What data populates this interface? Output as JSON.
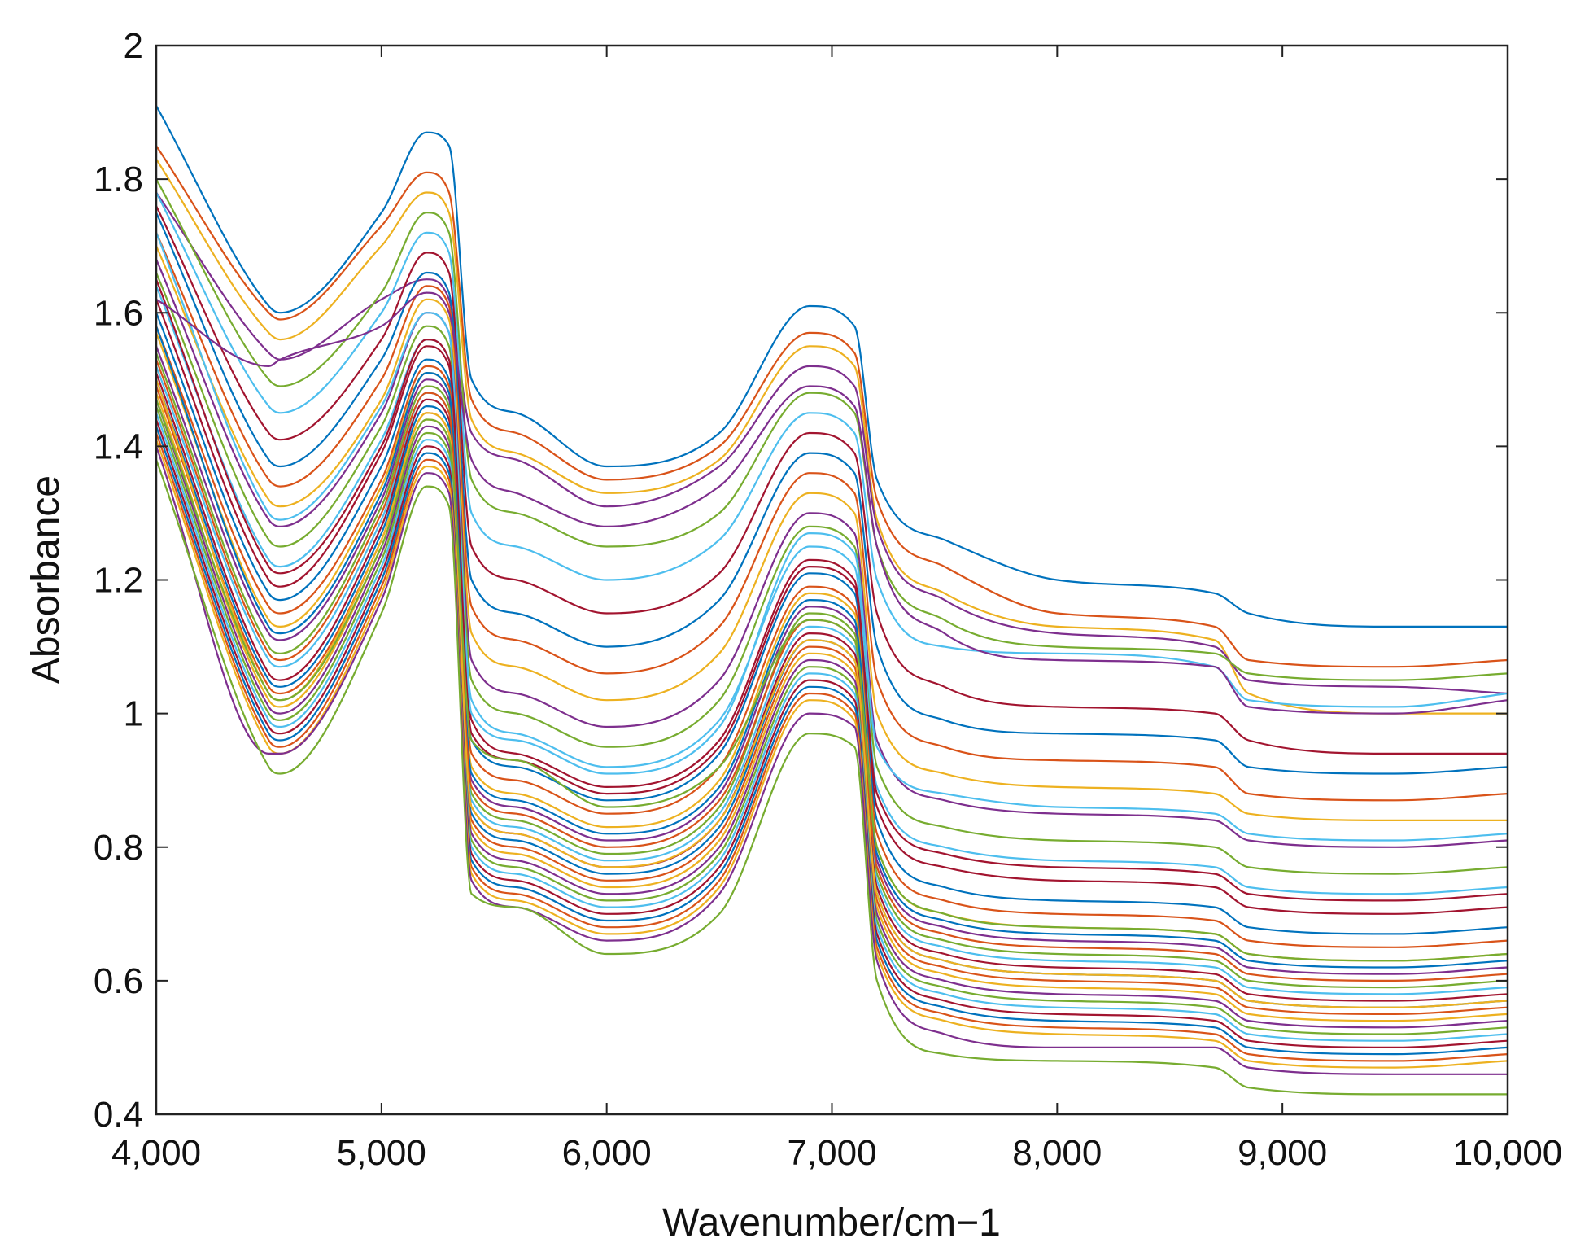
{
  "chart_data": {
    "type": "line",
    "title": "",
    "xlabel": "Wavenumber/cm−1",
    "ylabel": "Absorbance",
    "xlim": [
      4000,
      10000
    ],
    "ylim": [
      0.4,
      2
    ],
    "x_ticks": [
      4000,
      5000,
      6000,
      7000,
      8000,
      9000,
      10000
    ],
    "x_tick_labels": [
      "4,000",
      "5,000",
      "6,000",
      "7,000",
      "8,000",
      "9,000",
      "10,000"
    ],
    "y_ticks": [
      0.4,
      0.6,
      0.8,
      1,
      1.2,
      1.4,
      1.6,
      1.8,
      2
    ],
    "y_tick_labels": [
      "0.4",
      "0.6",
      "0.8",
      "1",
      "1.2",
      "1.4",
      "1.6",
      "1.8",
      "2"
    ],
    "grid": false,
    "legend": "none",
    "colors": [
      "#0072BD",
      "#D95319",
      "#EDB120",
      "#7E2F8E",
      "#77AC30",
      "#4DBEEE",
      "#A2142F"
    ],
    "x": [
      4000,
      4500,
      4550,
      5000,
      5200,
      5300,
      5400,
      5600,
      6000,
      6500,
      6900,
      7100,
      7200,
      7500,
      8000,
      8700,
      8850,
      9500,
      10000
    ],
    "series": [
      {
        "values": [
          1.91,
          1.61,
          1.6,
          1.75,
          1.87,
          1.85,
          1.5,
          1.45,
          1.37,
          1.42,
          1.61,
          1.58,
          1.35,
          1.26,
          1.2,
          1.18,
          1.15,
          1.13,
          1.13
        ]
      },
      {
        "values": [
          1.85,
          1.6,
          1.59,
          1.73,
          1.81,
          1.78,
          1.47,
          1.42,
          1.35,
          1.4,
          1.57,
          1.54,
          1.32,
          1.22,
          1.15,
          1.13,
          1.08,
          1.07,
          1.08
        ]
      },
      {
        "values": [
          1.83,
          1.57,
          1.56,
          1.7,
          1.78,
          1.75,
          1.44,
          1.39,
          1.33,
          1.38,
          1.55,
          1.52,
          1.29,
          1.18,
          1.13,
          1.11,
          1.03,
          1.0,
          1.0
        ]
      },
      {
        "values": [
          1.78,
          1.54,
          1.53,
          1.62,
          1.65,
          1.62,
          1.42,
          1.38,
          1.31,
          1.37,
          1.52,
          1.49,
          1.28,
          1.17,
          1.12,
          1.1,
          1.05,
          1.04,
          1.03
        ]
      },
      {
        "values": [
          1.8,
          1.5,
          1.49,
          1.63,
          1.75,
          1.72,
          1.35,
          1.3,
          1.25,
          1.3,
          1.48,
          1.45,
          1.25,
          1.14,
          1.1,
          1.09,
          1.06,
          1.05,
          1.06
        ]
      },
      {
        "values": [
          1.78,
          1.46,
          1.45,
          1.6,
          1.72,
          1.69,
          1.3,
          1.25,
          1.2,
          1.26,
          1.45,
          1.42,
          1.2,
          1.1,
          1.09,
          1.07,
          1.02,
          1.01,
          1.03
        ]
      },
      {
        "values": [
          1.76,
          1.42,
          1.41,
          1.56,
          1.69,
          1.66,
          1.25,
          1.2,
          1.15,
          1.21,
          1.42,
          1.39,
          1.15,
          1.04,
          1.01,
          1.0,
          0.96,
          0.94,
          0.94
        ]
      },
      {
        "values": [
          1.75,
          1.38,
          1.37,
          1.53,
          1.66,
          1.63,
          1.2,
          1.15,
          1.1,
          1.17,
          1.39,
          1.36,
          1.1,
          0.99,
          0.97,
          0.96,
          0.92,
          0.91,
          0.92
        ]
      },
      {
        "values": [
          1.72,
          1.35,
          1.34,
          1.5,
          1.64,
          1.61,
          1.16,
          1.11,
          1.06,
          1.13,
          1.36,
          1.33,
          1.05,
          0.95,
          0.93,
          0.92,
          0.88,
          0.87,
          0.88
        ]
      },
      {
        "values": [
          1.7,
          1.32,
          1.31,
          1.47,
          1.62,
          1.59,
          1.12,
          1.07,
          1.02,
          1.09,
          1.33,
          1.3,
          1.0,
          0.91,
          0.89,
          0.88,
          0.85,
          0.84,
          0.84
        ]
      },
      {
        "values": [
          1.68,
          1.29,
          1.28,
          1.45,
          1.6,
          1.57,
          1.08,
          1.03,
          0.98,
          1.05,
          1.3,
          1.27,
          0.96,
          0.87,
          0.85,
          0.84,
          0.81,
          0.8,
          0.81
        ]
      },
      {
        "values": [
          1.66,
          1.26,
          1.25,
          1.43,
          1.58,
          1.55,
          1.05,
          1.0,
          0.95,
          1.02,
          1.28,
          1.25,
          0.92,
          0.83,
          0.81,
          0.8,
          0.77,
          0.76,
          0.77
        ]
      },
      {
        "values": [
          1.64,
          1.23,
          1.22,
          1.41,
          1.56,
          1.53,
          1.02,
          0.97,
          0.92,
          0.99,
          1.25,
          1.22,
          0.89,
          0.8,
          0.78,
          0.77,
          0.74,
          0.73,
          0.74
        ]
      },
      {
        "values": [
          1.62,
          1.2,
          1.19,
          1.39,
          1.55,
          1.52,
          0.99,
          0.94,
          0.89,
          0.96,
          1.23,
          1.2,
          0.86,
          0.77,
          0.75,
          0.74,
          0.71,
          0.7,
          0.71
        ]
      },
      {
        "values": [
          1.6,
          1.18,
          1.17,
          1.37,
          1.53,
          1.5,
          0.96,
          0.92,
          0.87,
          0.94,
          1.21,
          1.18,
          0.84,
          0.74,
          0.72,
          0.71,
          0.68,
          0.67,
          0.68
        ]
      },
      {
        "values": [
          1.58,
          1.16,
          1.15,
          1.35,
          1.52,
          1.49,
          0.94,
          0.9,
          0.85,
          0.92,
          1.19,
          1.16,
          0.82,
          0.72,
          0.7,
          0.69,
          0.66,
          0.65,
          0.66
        ]
      },
      {
        "values": [
          1.57,
          1.14,
          1.13,
          1.34,
          1.51,
          1.48,
          0.92,
          0.88,
          0.83,
          0.9,
          1.18,
          1.15,
          0.8,
          0.7,
          0.68,
          0.67,
          0.64,
          0.63,
          0.64
        ]
      },
      {
        "values": [
          1.55,
          1.12,
          1.11,
          1.32,
          1.5,
          1.47,
          0.9,
          0.86,
          0.81,
          0.88,
          1.16,
          1.13,
          0.78,
          0.68,
          0.66,
          0.65,
          0.62,
          0.61,
          0.62
        ]
      },
      {
        "values": [
          1.54,
          1.1,
          1.09,
          1.31,
          1.49,
          1.46,
          0.88,
          0.84,
          0.79,
          0.86,
          1.15,
          1.12,
          0.76,
          0.66,
          0.64,
          0.63,
          0.6,
          0.59,
          0.6
        ]
      },
      {
        "values": [
          1.52,
          1.08,
          1.07,
          1.29,
          1.48,
          1.45,
          0.87,
          0.83,
          0.78,
          0.85,
          1.13,
          1.1,
          0.75,
          0.65,
          0.63,
          0.62,
          0.59,
          0.58,
          0.59
        ]
      },
      {
        "values": [
          1.51,
          1.06,
          1.05,
          1.28,
          1.47,
          1.44,
          0.86,
          0.82,
          0.77,
          0.84,
          1.12,
          1.09,
          0.74,
          0.64,
          0.62,
          0.61,
          0.58,
          0.57,
          0.58
        ]
      },
      {
        "values": [
          1.5,
          1.05,
          1.04,
          1.27,
          1.46,
          1.43,
          0.85,
          0.81,
          0.76,
          0.83,
          1.11,
          1.08,
          0.73,
          0.63,
          0.61,
          0.6,
          0.57,
          0.56,
          0.57
        ]
      },
      {
        "values": [
          1.49,
          1.04,
          1.03,
          1.26,
          1.45,
          1.42,
          0.84,
          0.8,
          0.75,
          0.82,
          1.1,
          1.07,
          0.72,
          0.62,
          0.6,
          0.59,
          0.56,
          0.55,
          0.56
        ]
      },
      {
        "values": [
          1.48,
          1.02,
          1.01,
          1.25,
          1.44,
          1.41,
          0.83,
          0.79,
          0.74,
          0.81,
          1.09,
          1.06,
          0.71,
          0.61,
          0.59,
          0.58,
          0.55,
          0.54,
          0.55
        ]
      },
      {
        "values": [
          1.47,
          1.01,
          1.0,
          1.24,
          1.43,
          1.4,
          0.82,
          0.78,
          0.73,
          0.8,
          1.08,
          1.05,
          0.7,
          0.6,
          0.58,
          0.57,
          0.54,
          0.53,
          0.54
        ]
      },
      {
        "values": [
          1.46,
          1.0,
          0.99,
          1.23,
          1.42,
          1.39,
          0.81,
          0.77,
          0.72,
          0.79,
          1.07,
          1.04,
          0.69,
          0.59,
          0.57,
          0.56,
          0.53,
          0.52,
          0.53
        ]
      },
      {
        "values": [
          1.45,
          0.99,
          0.98,
          1.22,
          1.41,
          1.38,
          0.8,
          0.76,
          0.71,
          0.78,
          1.06,
          1.03,
          0.68,
          0.58,
          0.56,
          0.55,
          0.52,
          0.51,
          0.52
        ]
      },
      {
        "values": [
          1.44,
          0.98,
          0.97,
          1.21,
          1.4,
          1.37,
          0.79,
          0.75,
          0.7,
          0.77,
          1.05,
          1.02,
          0.67,
          0.57,
          0.55,
          0.54,
          0.51,
          0.5,
          0.51
        ]
      },
      {
        "values": [
          1.43,
          0.97,
          0.96,
          1.2,
          1.39,
          1.36,
          0.78,
          0.74,
          0.69,
          0.76,
          1.04,
          1.01,
          0.66,
          0.56,
          0.54,
          0.53,
          0.5,
          0.49,
          0.5
        ]
      },
      {
        "values": [
          1.42,
          0.96,
          0.95,
          1.19,
          1.38,
          1.35,
          0.77,
          0.73,
          0.68,
          0.75,
          1.03,
          1.0,
          0.65,
          0.55,
          0.53,
          0.52,
          0.49,
          0.48,
          0.49
        ]
      },
      {
        "values": [
          1.41,
          0.95,
          0.94,
          1.18,
          1.37,
          1.34,
          0.76,
          0.72,
          0.67,
          0.74,
          1.02,
          0.99,
          0.64,
          0.54,
          0.52,
          0.51,
          0.48,
          0.47,
          0.48
        ]
      },
      {
        "values": [
          1.4,
          0.94,
          0.94,
          1.17,
          1.36,
          1.33,
          0.75,
          0.71,
          0.66,
          0.73,
          1.0,
          0.98,
          0.63,
          0.52,
          0.5,
          0.5,
          0.47,
          0.46,
          0.46
        ]
      },
      {
        "values": [
          1.38,
          0.92,
          0.91,
          1.15,
          1.34,
          1.31,
          0.73,
          0.71,
          0.64,
          0.7,
          0.97,
          0.95,
          0.6,
          0.49,
          0.48,
          0.47,
          0.44,
          0.43,
          0.43
        ]
      },
      {
        "values": [
          1.72,
          1.3,
          1.29,
          1.46,
          1.6,
          1.57,
          1.0,
          0.96,
          0.91,
          0.98,
          1.27,
          1.24,
          0.95,
          0.88,
          0.86,
          0.85,
          0.82,
          0.81,
          0.82
        ]
      },
      {
        "values": [
          1.65,
          1.22,
          1.21,
          1.4,
          1.56,
          1.53,
          0.97,
          0.93,
          0.88,
          0.95,
          1.22,
          1.19,
          0.88,
          0.79,
          0.77,
          0.76,
          0.73,
          0.72,
          0.73
        ]
      },
      {
        "values": [
          1.58,
          1.13,
          1.12,
          1.33,
          1.51,
          1.48,
          0.91,
          0.87,
          0.82,
          0.89,
          1.17,
          1.14,
          0.79,
          0.69,
          0.67,
          0.66,
          0.63,
          0.62,
          0.63
        ]
      },
      {
        "values": [
          1.53,
          1.09,
          1.08,
          1.3,
          1.48,
          1.45,
          0.89,
          0.85,
          0.8,
          0.87,
          1.14,
          1.11,
          0.77,
          0.67,
          0.65,
          0.64,
          0.61,
          0.6,
          0.61
        ]
      },
      {
        "values": [
          1.5,
          1.03,
          1.02,
          1.26,
          1.45,
          1.42,
          0.86,
          0.82,
          0.77,
          0.84,
          1.11,
          1.08,
          0.73,
          0.63,
          0.61,
          0.6,
          0.57,
          0.56,
          0.57
        ]
      },
      {
        "values": [
          1.62,
          1.52,
          1.53,
          1.58,
          1.63,
          1.6,
          1.38,
          1.33,
          1.28,
          1.34,
          1.49,
          1.46,
          1.25,
          1.12,
          1.08,
          1.07,
          1.01,
          1.0,
          1.02
        ]
      },
      {
        "values": [
          1.47,
          1.03,
          1.02,
          1.25,
          1.44,
          1.41,
          0.96,
          0.93,
          0.86,
          0.92,
          1.14,
          1.11,
          0.8,
          0.7,
          0.68,
          0.67,
          0.64,
          0.63,
          0.64
        ]
      }
    ]
  }
}
